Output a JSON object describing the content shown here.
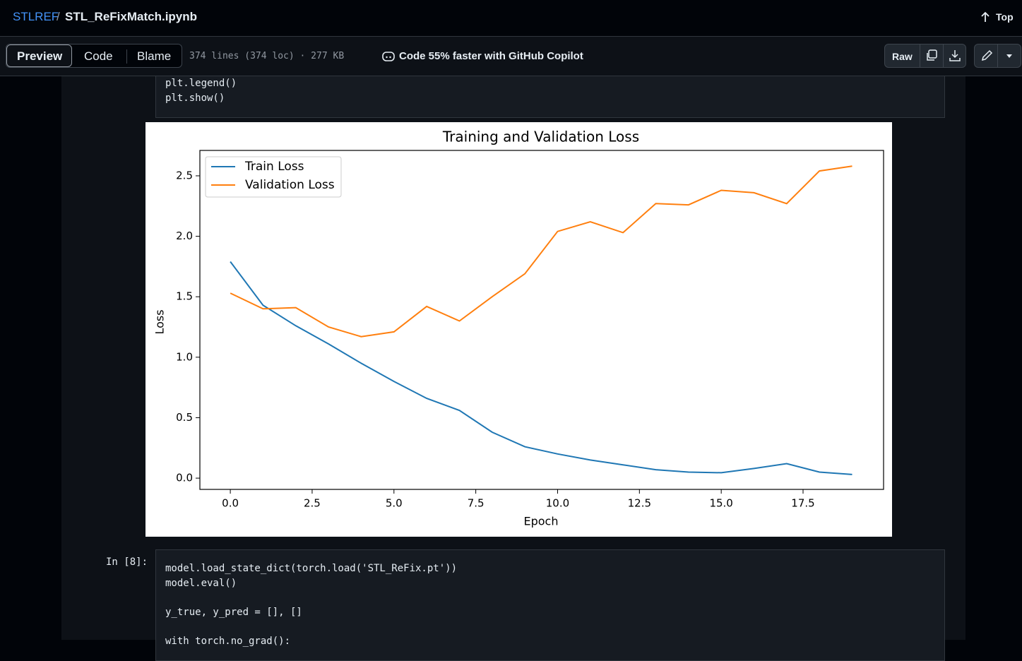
{
  "header": {
    "repo": "STLREF",
    "separator": "/",
    "file": "STL_ReFixMatch.ipynb",
    "top": "Top"
  },
  "toolbar": {
    "tabs": [
      "Preview",
      "Code",
      "Blame"
    ],
    "info": "374 lines (374 loc) · 277 KB",
    "copilot": "Code 55% faster with GitHub Copilot",
    "raw": "Raw"
  },
  "cells": [
    {
      "lines": [
        "plt.legend()",
        "plt.show()"
      ]
    },
    {
      "prompt": "In [8]:",
      "lines": [
        "model.load_state_dict(torch.load('STL_ReFix.pt'))",
        "model.eval()",
        "",
        "y_true, y_pred = [], []",
        "",
        "with torch.no_grad():"
      ]
    }
  ],
  "chart_data": {
    "type": "line",
    "title": "Training and Validation Loss",
    "x_label": "Epoch",
    "y_label": "Loss",
    "x": [
      0,
      1,
      2,
      3,
      4,
      5,
      6,
      7,
      8,
      9,
      10,
      11,
      12,
      13,
      14,
      15,
      16,
      17,
      18,
      19
    ],
    "series": [
      {
        "name": "Train Loss",
        "color": "#1f77b4",
        "values": [
          1.79,
          1.43,
          1.26,
          1.11,
          0.95,
          0.8,
          0.66,
          0.56,
          0.38,
          0.26,
          0.2,
          0.15,
          0.11,
          0.07,
          0.05,
          0.045,
          0.08,
          0.12,
          0.05,
          0.03
        ]
      },
      {
        "name": "Validation Loss",
        "color": "#ff7f0e",
        "values": [
          1.53,
          1.4,
          1.41,
          1.25,
          1.17,
          1.21,
          1.42,
          1.3,
          1.5,
          1.69,
          2.04,
          2.12,
          2.03,
          2.27,
          2.26,
          2.38,
          2.36,
          2.27,
          2.54,
          2.58
        ]
      }
    ],
    "xlim": [
      -0.93,
      19.96
    ],
    "ylim": [
      -0.093,
      2.71
    ],
    "xticks": [
      {
        "value": 0,
        "label": "0.0"
      },
      2.5,
      {
        "value": 5,
        "label": "5.0"
      },
      7.5,
      {
        "value": 10,
        "label": "10.0"
      },
      12.5,
      {
        "value": 15,
        "label": "15.0"
      },
      17.5
    ],
    "yticks": [
      {
        "value": 0,
        "label": "0.0"
      },
      0.5,
      {
        "value": 1,
        "label": "1.0"
      },
      1.5,
      {
        "value": 2,
        "label": "2.0"
      },
      2.5
    ],
    "legend": "upper left",
    "grid": false
  }
}
